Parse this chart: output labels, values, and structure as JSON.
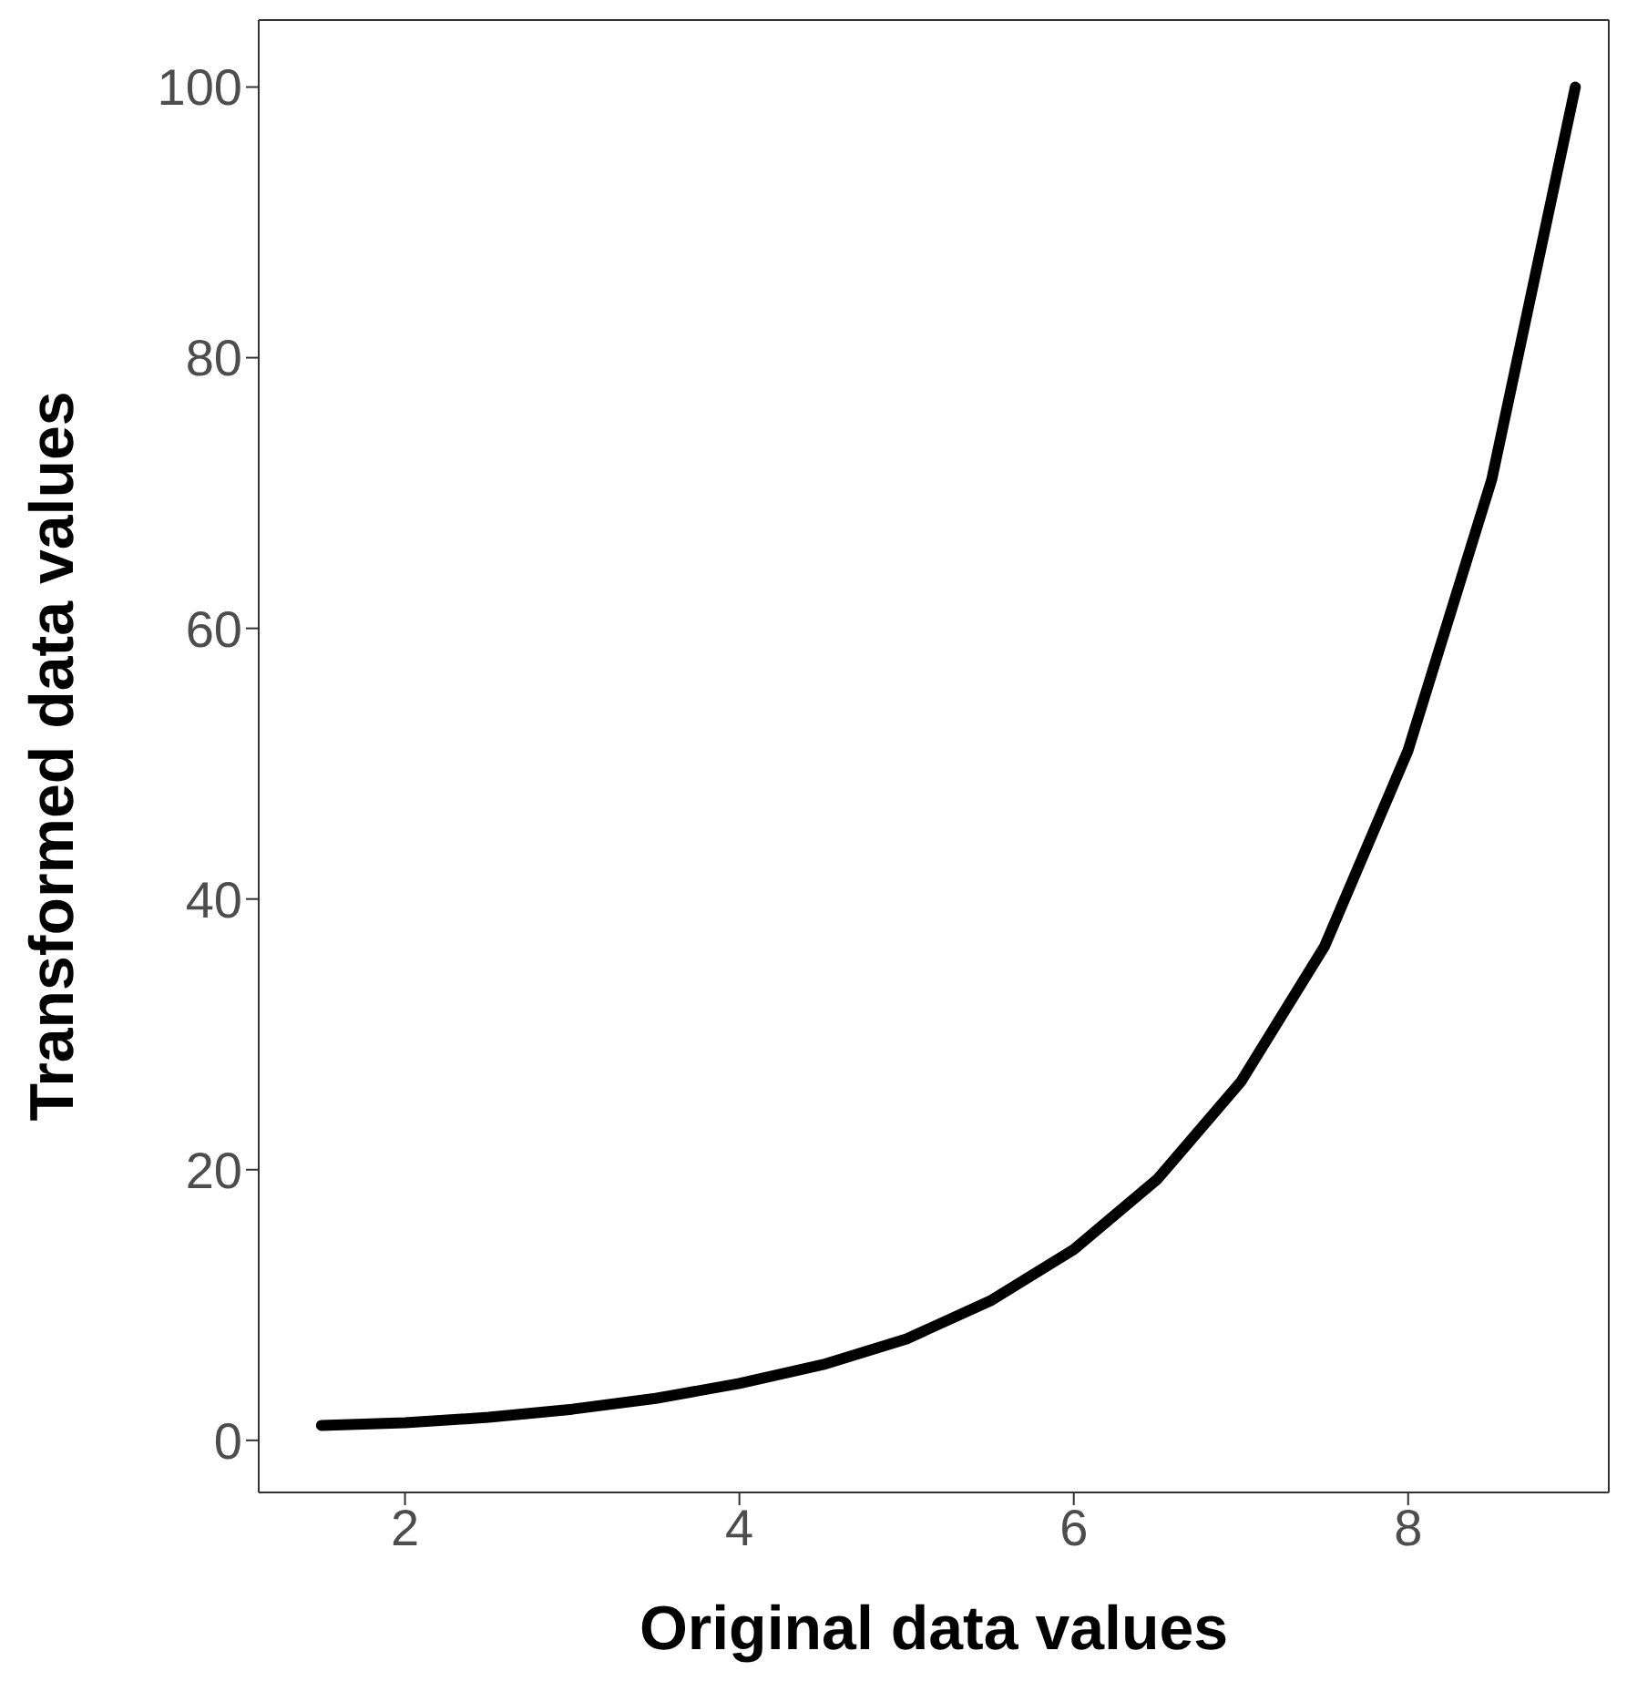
{
  "chart_data": {
    "type": "line",
    "xlabel": "Original data values",
    "ylabel": "Transformed data values",
    "x": [
      1.5,
      2,
      2.5,
      3,
      3.5,
      4,
      4.5,
      5,
      5.5,
      6,
      6.5,
      7,
      7.5,
      8,
      8.5,
      9
    ],
    "series": [
      {
        "color": "#000000",
        "values": [
          1.1,
          1.3,
          1.7,
          2.3,
          3.1,
          4.2,
          5.6,
          7.5,
          10.3,
          14.1,
          19.3,
          26.5,
          36.5,
          51,
          71,
          100
        ]
      }
    ],
    "xlim": [
      1.125,
      9.2
    ],
    "ylim": [
      -3.85,
      104.95
    ],
    "xticks": [
      2,
      4,
      6,
      8
    ],
    "yticks": [
      0,
      20,
      40,
      60,
      80,
      100
    ],
    "grid": false,
    "legend": false,
    "marker": "none",
    "line_style": "solid"
  }
}
